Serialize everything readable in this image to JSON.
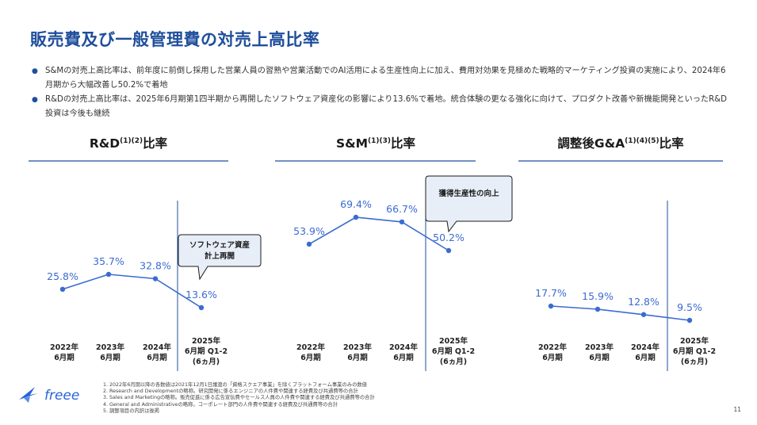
{
  "title": "販売費及び一般管理費の対売上高比率",
  "bullets": [
    "S&Mの対売上高比率は、前年度に前倒し採用した営業人員の習熟や営業活動でのAI活用による生産性向上に加え、費用対効果を見極めた戦略的マーケティング投資の実施により、2024年6月期から大幅改善し50.2%で着地",
    "R&Dの対売上高比率は、2025年6月期第1四半期から再開したソフトウェア資産化の影響により13.6%で着地。統合体験の更なる強化に向けて、プロダクト改善や新機能開発といったR&D投資は今後も継続"
  ],
  "colors": {
    "accent": "#1f4e9c",
    "line": "#3b6bd1",
    "callout_bg": "#e8eef8"
  },
  "chart_data": [
    {
      "type": "line",
      "title": "R&D",
      "title_sup": "(1)(2)",
      "title_suffix": "比率",
      "categories": [
        [
          "2022年",
          "6月期"
        ],
        [
          "2023年",
          "6月期"
        ],
        [
          "2024年",
          "6月期"
        ],
        [
          "2025年",
          "6月期 Q1-2",
          "(6ヵ月)"
        ]
      ],
      "values": [
        25.8,
        35.7,
        32.8,
        13.6
      ],
      "labels": [
        "25.8%",
        "35.7%",
        "32.8%",
        "13.6%"
      ],
      "callout": [
        "ソフトウェア資産",
        "計上再開"
      ],
      "unit": "%"
    },
    {
      "type": "line",
      "title": "S&M",
      "title_sup": "(1)(3)",
      "title_suffix": "比率",
      "categories": [
        [
          "2022年",
          "6月期"
        ],
        [
          "2023年",
          "6月期"
        ],
        [
          "2024年",
          "6月期"
        ],
        [
          "2025年",
          "6月期 Q1-2",
          "(6ヵ月)"
        ]
      ],
      "values": [
        53.9,
        69.4,
        66.7,
        50.2
      ],
      "labels": [
        "53.9%",
        "69.4%",
        "66.7%",
        "50.2%"
      ],
      "callout": [
        "獲得生産性の向上"
      ],
      "unit": "%"
    },
    {
      "type": "line",
      "title": "調整後G&A",
      "title_sup": "(1)(4)(5)",
      "title_suffix": "比率",
      "categories": [
        [
          "2022年",
          "6月期"
        ],
        [
          "2023年",
          "6月期"
        ],
        [
          "2024年",
          "6月期"
        ],
        [
          "2025年",
          "6月期 Q1-2",
          "(6ヵ月)"
        ]
      ],
      "values": [
        17.7,
        15.9,
        12.8,
        9.5
      ],
      "labels": [
        "17.7%",
        "15.9%",
        "12.8%",
        "9.5%"
      ],
      "callout": null,
      "unit": "%"
    }
  ],
  "footnotes": [
    "1.  2022年6月期以降の各数値は2021年12月1日譲渡の「資格スクエア事業」を除くプラットフォーム事業のみの数値",
    "2.  Research and Developmentの略称。研究開発に係るエンジニアの人件費や関連する経費及び共通費等の合計",
    "3.  Sales and Marketingの略称。販売促進に係る広告宣伝費やセールス人員の人件費や関連する経費及び共通費等の合計",
    "4.  General and Administrativeの略称。コーポレート部門の人件費や関連する経費及び共通費等の合計",
    "5.  調整項目の内訳は後掲"
  ],
  "logo_text": "freee",
  "page_number": "11"
}
